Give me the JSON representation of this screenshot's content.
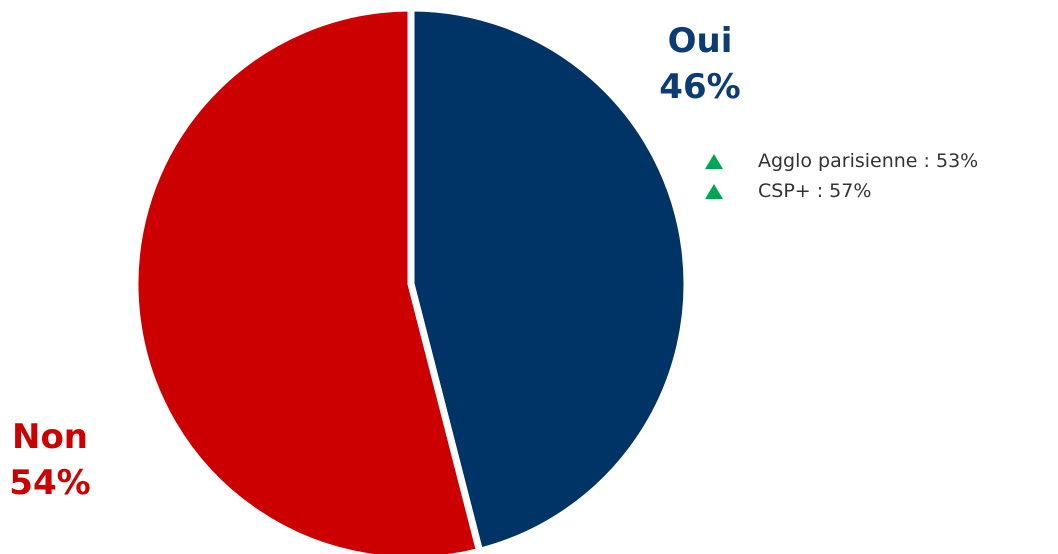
{
  "chart_data": {
    "type": "pie",
    "slices": [
      {
        "label": "Oui",
        "value": 46,
        "value_label": "46%",
        "color": "#003366"
      },
      {
        "label": "Non",
        "value": 54,
        "value_label": "54%",
        "color": "#cc0000"
      }
    ],
    "start_angle": "12 o'clock",
    "direction": "clockwise",
    "legend": "none"
  },
  "notes": [
    {
      "icon": "green-up-triangle-icon",
      "text": "Agglo parisienne : 53%"
    },
    {
      "icon": "green-up-triangle-icon",
      "text": "CSP+ : 57%"
    }
  ]
}
